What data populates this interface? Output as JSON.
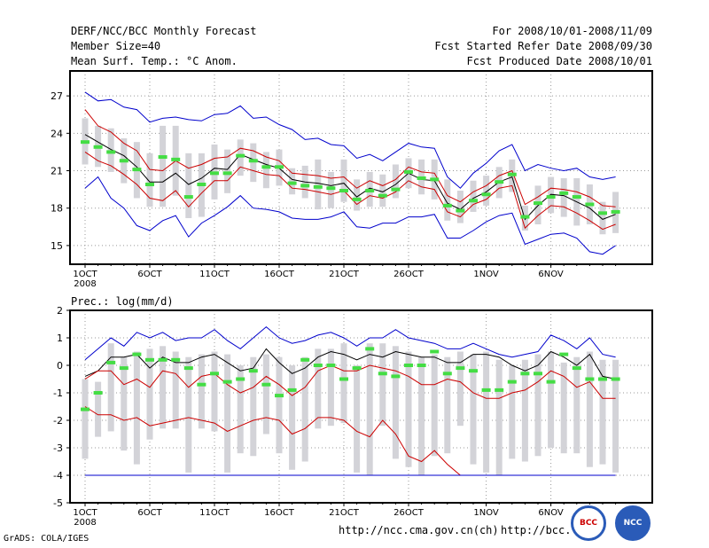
{
  "header": {
    "left": [
      "DERF/NCC/BCC Monthly Forecast",
      "Member Size=40",
      "Mean Surf. Temp.: °C Anom."
    ],
    "right": [
      "For 2008/10/01-2008/11/09",
      "Fcst Started Refer Date 2008/09/30",
      "Fcst Produced Date 2008/10/01"
    ]
  },
  "footer": {
    "grads": "GrADS: COLA/IGES",
    "url1": "http://ncc.cma.gov.cn(ch)",
    "url2": "http://bcc.",
    "logo1": "BCC",
    "logo2": "NCC"
  },
  "chart_data": [
    {
      "type": "line",
      "title": "Mean Surf. Temp.: °C Anom.",
      "x_ticks": [
        "1OCT",
        "6OCT",
        "11OCT",
        "16OCT",
        "21OCT",
        "26OCT",
        "1NOV",
        "6NOV"
      ],
      "x_tick_days": [
        0,
        5,
        10,
        15,
        20,
        25,
        31,
        36
      ],
      "x_sub": "2008",
      "ylim": [
        13.5,
        29
      ],
      "y_ticks": [
        15,
        18,
        21,
        24,
        27
      ],
      "series": [
        {
          "name": "ensemble max",
          "color": "#0000cc",
          "values": [
            27.3,
            26.6,
            26.7,
            26.1,
            25.9,
            24.9,
            25.2,
            25.3,
            25.1,
            25.0,
            25.5,
            25.6,
            26.2,
            25.2,
            25.3,
            24.7,
            24.3,
            23.5,
            23.6,
            23.1,
            23.0,
            22.0,
            22.3,
            21.8,
            22.5,
            23.2,
            22.9,
            22.8,
            20.5,
            19.6,
            20.8,
            21.6,
            22.6,
            23.1,
            21.0,
            21.5,
            21.2,
            21.0,
            21.2,
            20.5,
            20.3,
            20.5
          ]
        },
        {
          "name": "upper",
          "color": "#cc0000",
          "values": [
            25.9,
            24.6,
            24.1,
            23.2,
            22.6,
            21.1,
            21.0,
            21.8,
            21.2,
            21.5,
            22.0,
            22.1,
            22.8,
            22.6,
            22.1,
            21.8,
            20.8,
            20.7,
            20.6,
            20.4,
            20.5,
            19.6,
            20.2,
            19.8,
            20.3,
            21.3,
            20.9,
            20.8,
            19.0,
            18.5,
            19.3,
            19.8,
            20.6,
            21.0,
            18.3,
            18.9,
            19.6,
            19.5,
            19.3,
            18.9,
            18.2,
            18.1
          ]
        },
        {
          "name": "ensemble mean",
          "color": "#000000",
          "values": [
            23.9,
            23.3,
            22.7,
            22.2,
            21.3,
            20.1,
            20.1,
            20.8,
            19.9,
            20.4,
            21.2,
            21.1,
            22.3,
            21.9,
            21.5,
            21.2,
            20.3,
            20.1,
            20.0,
            19.8,
            20.0,
            18.9,
            19.6,
            19.3,
            19.9,
            20.8,
            20.3,
            20.2,
            18.4,
            17.9,
            18.8,
            19.3,
            20.1,
            20.5,
            17.1,
            18.2,
            19.1,
            19.0,
            18.5,
            18.0,
            17.1,
            17.5
          ]
        },
        {
          "name": "lower",
          "color": "#cc0000",
          "values": [
            22.5,
            21.8,
            21.4,
            20.7,
            19.9,
            18.8,
            18.6,
            19.4,
            18.1,
            19.2,
            20.2,
            20.2,
            21.3,
            21.0,
            20.7,
            20.6,
            19.6,
            19.5,
            19.3,
            19.1,
            19.4,
            18.3,
            19.0,
            18.8,
            19.3,
            20.2,
            19.7,
            19.5,
            17.7,
            17.3,
            18.3,
            18.7,
            19.6,
            19.8,
            16.4,
            17.4,
            18.2,
            18.1,
            17.6,
            17.0,
            16.3,
            16.7
          ]
        },
        {
          "name": "ensemble min",
          "color": "#0000cc",
          "values": [
            19.6,
            20.5,
            18.8,
            18.0,
            16.6,
            16.2,
            17.0,
            17.4,
            15.7,
            16.8,
            17.4,
            18.1,
            19.0,
            18.0,
            17.9,
            17.7,
            17.2,
            17.1,
            17.1,
            17.3,
            17.7,
            16.5,
            16.4,
            16.8,
            16.8,
            17.3,
            17.3,
            17.5,
            15.6,
            15.6,
            16.2,
            16.9,
            17.4,
            17.6,
            15.1,
            15.5,
            15.9,
            16.0,
            15.6,
            14.5,
            14.3,
            15.0
          ]
        }
      ],
      "members_box_lo": [
        21.5,
        21.3,
        20.9,
        20.0,
        18.8,
        18.1,
        18.1,
        19.0,
        17.2,
        17.3,
        18.7,
        19.2,
        20.6,
        20.1,
        19.6,
        19.8,
        19.1,
        18.8,
        17.9,
        18.0,
        18.5,
        17.8,
        18.1,
        18.1,
        18.8,
        19.6,
        19.1,
        18.7,
        17.0,
        16.8,
        17.7,
        18.2,
        18.8,
        19.3,
        16.2,
        16.7,
        17.6,
        17.3,
        16.6,
        16.7,
        15.9,
        16.0
      ],
      "members_box_hi": [
        25.2,
        24.6,
        24.4,
        23.6,
        23.3,
        22.4,
        24.6,
        24.6,
        22.4,
        22.4,
        23.1,
        22.7,
        23.5,
        23.2,
        22.5,
        22.7,
        21.2,
        21.4,
        21.9,
        20.9,
        21.9,
        20.3,
        20.9,
        20.7,
        21.5,
        22.0,
        21.9,
        21.9,
        20.3,
        19.4,
        20.2,
        20.6,
        21.3,
        21.9,
        18.2,
        19.8,
        20.5,
        20.4,
        20.4,
        19.9,
        18.5,
        19.3
      ],
      "observed": [
        23.3,
        22.9,
        22.5,
        21.8,
        21.1,
        19.9,
        22.1,
        21.9,
        18.9,
        19.9,
        20.8,
        20.8,
        22.2,
        21.8,
        21.3,
        21.3,
        20.0,
        19.8,
        19.7,
        19.6,
        19.4,
        18.7,
        19.4,
        19.0,
        19.5,
        20.9,
        20.4,
        20.3,
        18.2,
        17.8,
        18.6,
        19.1,
        20.1,
        20.7,
        17.3,
        18.4,
        18.9,
        19.2,
        18.9,
        18.3,
        17.6,
        17.7
      ]
    },
    {
      "type": "line",
      "title": "Prec.: log(mm/d)",
      "x_ticks": [
        "1OCT",
        "6OCT",
        "11OCT",
        "16OCT",
        "21OCT",
        "26OCT",
        "1NOV",
        "6NOV"
      ],
      "x_tick_days": [
        0,
        5,
        10,
        15,
        20,
        25,
        31,
        36
      ],
      "x_sub": "2008",
      "ylim": [
        -5,
        2
      ],
      "y_ticks": [
        -5,
        -4,
        -3,
        -2,
        -1,
        0,
        1,
        2
      ],
      "series": [
        {
          "name": "ensemble max",
          "color": "#0000cc",
          "values": [
            0.2,
            0.6,
            1.0,
            0.7,
            1.2,
            1.0,
            1.2,
            0.9,
            1.0,
            1.0,
            1.3,
            0.9,
            0.6,
            1.0,
            1.4,
            1.0,
            0.8,
            0.9,
            1.1,
            1.2,
            1.0,
            0.7,
            1.0,
            1.0,
            1.3,
            1.0,
            0.9,
            0.8,
            0.6,
            0.6,
            0.8,
            0.6,
            0.4,
            0.3,
            0.4,
            0.5,
            1.1,
            0.9,
            0.6,
            1.0,
            0.4,
            0.3
          ]
        },
        {
          "name": "upper",
          "color": "#000000",
          "values": [
            -0.4,
            -0.2,
            0.3,
            0.3,
            0.4,
            -0.1,
            0.3,
            0.1,
            0.1,
            0.3,
            0.4,
            0.1,
            -0.2,
            -0.1,
            0.6,
            0.1,
            -0.3,
            -0.1,
            0.3,
            0.5,
            0.4,
            0.2,
            0.4,
            0.3,
            0.5,
            0.4,
            0.3,
            0.3,
            0.1,
            0.1,
            0.4,
            0.4,
            0.3,
            0.0,
            -0.2,
            0.0,
            0.5,
            0.3,
            0.0,
            0.4,
            -0.4,
            -0.5
          ]
        },
        {
          "name": "mean",
          "color": "#cc0000",
          "values": [
            -0.5,
            -0.2,
            -0.2,
            -0.7,
            -0.5,
            -0.8,
            -0.2,
            -0.3,
            -0.8,
            -0.4,
            -0.3,
            -0.7,
            -1.0,
            -0.8,
            -0.4,
            -0.7,
            -1.1,
            -0.8,
            -0.2,
            0.0,
            -0.2,
            -0.2,
            0.0,
            -0.1,
            -0.2,
            -0.4,
            -0.7,
            -0.7,
            -0.5,
            -0.6,
            -1.0,
            -1.2,
            -1.2,
            -1.0,
            -0.9,
            -0.6,
            -0.2,
            -0.4,
            -0.8,
            -0.6,
            -1.2,
            -1.2
          ]
        },
        {
          "name": "lower",
          "color": "#cc0000",
          "values": [
            -1.5,
            -1.8,
            -1.8,
            -2.0,
            -1.9,
            -2.2,
            -2.1,
            -2.0,
            -1.9,
            -2.0,
            -2.1,
            -2.4,
            -2.2,
            -2.0,
            -1.9,
            -2.0,
            -2.5,
            -2.3,
            -1.9,
            -1.9,
            -2.0,
            -2.4,
            -2.6,
            -2.0,
            -2.5,
            -3.3,
            -3.5,
            -3.1,
            -3.6,
            -4.0,
            -4.0,
            -4.0,
            -4.0,
            -4.0,
            -4.0,
            -4.0,
            -4.0,
            -4.0,
            -4.0,
            -4.0,
            -4.0,
            -4.0
          ]
        },
        {
          "name": "ensemble min",
          "color": "#0000cc",
          "values": [
            -4.0,
            -4.0,
            -4.0,
            -4.0,
            -4.0,
            -4.0,
            -4.0,
            -4.0,
            -4.0,
            -4.0,
            -4.0,
            -4.0,
            -4.0,
            -4.0,
            -4.0,
            -4.0,
            -4.0,
            -4.0,
            -4.0,
            -4.0,
            -4.0,
            -4.0,
            -4.0,
            -4.0,
            -4.0,
            -4.0,
            -4.0,
            -4.0,
            -4.0,
            -4.0,
            -4.0,
            -4.0,
            -4.0,
            -4.0,
            -4.0,
            -4.0,
            -4.0,
            -4.0,
            -4.0,
            -4.0,
            -4.0,
            -4.0
          ]
        }
      ],
      "members_box_lo": [
        -3.4,
        -2.6,
        -2.4,
        -3.1,
        -3.6,
        -2.7,
        -2.3,
        -2.3,
        -3.9,
        -2.3,
        -2.4,
        -3.9,
        -3.2,
        -3.3,
        -2.5,
        -3.2,
        -3.8,
        -3.5,
        -2.3,
        -2.2,
        -2.1,
        -3.9,
        -4.0,
        -2.2,
        -3.4,
        -3.7,
        -4.0,
        -3.3,
        -3.2,
        -2.2,
        -3.6,
        -3.9,
        -4.0,
        -3.4,
        -3.5,
        -3.3,
        -3.0,
        -3.2,
        -3.2,
        -3.7,
        -3.6,
        -3.9
      ],
      "members_box_hi": [
        -0.5,
        -0.6,
        0.8,
        0.3,
        0.5,
        0.6,
        0.7,
        0.5,
        0.3,
        0.4,
        0.5,
        0.4,
        0.0,
        0.3,
        0.4,
        0.3,
        0.0,
        0.3,
        0.6,
        0.6,
        0.8,
        0.0,
        0.8,
        0.8,
        0.7,
        0.5,
        0.3,
        0.4,
        0.3,
        0.5,
        0.4,
        0.5,
        0.2,
        0.0,
        0.2,
        0.4,
        0.5,
        0.1,
        0.3,
        0.5,
        0.2,
        0.2
      ],
      "observed": [
        -1.6,
        -1.0,
        0.1,
        -0.1,
        0.4,
        0.2,
        0.2,
        0.2,
        -0.1,
        -0.7,
        -0.3,
        -0.6,
        -0.5,
        -0.2,
        -0.7,
        -1.1,
        -0.9,
        0.2,
        0.0,
        0.0,
        -0.5,
        -0.1,
        0.6,
        -0.3,
        -0.4,
        0.0,
        0.0,
        0.5,
        -0.3,
        -0.1,
        -0.2,
        -0.9,
        -0.9,
        -0.6,
        -0.3,
        -0.3,
        -0.6,
        0.4,
        -0.1,
        -0.5,
        -0.5,
        -0.5
      ]
    }
  ]
}
